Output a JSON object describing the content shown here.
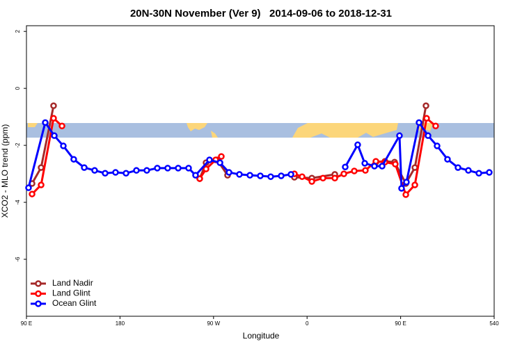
{
  "chart_data": {
    "type": "line",
    "title": "20N-30N November (Ver 9)   2014-09-06 to 2018-12-31",
    "x_label": "Longitude",
    "y_label": "XCO2 - MLO trend (ppm)",
    "xlim": [
      90,
      540
    ],
    "ylim": [
      -8,
      2.2
    ],
    "xticks": [
      {
        "value": 90,
        "label": "90 E"
      },
      180,
      {
        "value": 270,
        "label": "90 W"
      },
      {
        "value": 360,
        "label": "0"
      },
      {
        "value": 450,
        "label": "90 E"
      },
      540
    ],
    "yticks": [
      2,
      0,
      -2,
      -4,
      -6
    ],
    "legend": "bottom-left",
    "series": [
      {
        "name": "Land Nadir",
        "color": "#a52a2a",
        "x": [
          95.4,
          104.1,
          116.1,
          null,
          256.7,
          262.8,
          273.5,
          283.5,
          null,
          347.8,
          364.6,
          386.7,
          null,
          426.2,
          434.9,
          444.2,
          455,
          463.7,
          474.4
        ],
        "values": [
          -3.34,
          -2.78,
          -0.61,
          null,
          -3.17,
          -2.61,
          -2.51,
          -3.05,
          null,
          -3.12,
          -3.15,
          -3.02,
          null,
          -2.59,
          -2.56,
          -2.59,
          -3.34,
          -2.78,
          -0.61
        ]
      },
      {
        "name": "Land Glint",
        "color": "#ff0000",
        "x": [
          95.4,
          104.1,
          116.1,
          124.2,
          null,
          256.7,
          262.8,
          272.1,
          277.5,
          null,
          347.8,
          355.2,
          364.6,
          375.3,
          386.7,
          395.4,
          405.4,
          416.1,
          426.2,
          434.9,
          444.9,
          455,
          463.7,
          475,
          483.7
        ],
        "values": [
          -3.71,
          -3.39,
          -1.05,
          -1.32,
          null,
          -3.17,
          -2.83,
          -2.51,
          -2.39,
          null,
          -3.0,
          -3.1,
          -3.27,
          -3.15,
          -3.15,
          -3.0,
          -2.9,
          -2.88,
          -2.56,
          -2.59,
          -2.66,
          -3.73,
          -3.39,
          -1.05,
          -1.32
        ]
      },
      {
        "name": "Ocean Glint",
        "color": "#0000ff",
        "x": [
          92,
          108.1,
          116.8,
          125.5,
          135.5,
          145.6,
          155.6,
          165.7,
          175.7,
          185.8,
          195.8,
          205.8,
          215.9,
          225.9,
          236,
          246,
          252.7,
          266.1,
          276.2,
          284.9,
          294.9,
          305,
          315,
          325,
          335.1,
          344.5,
          null,
          396.7,
          408.7,
          415.5,
          424.8,
          432.2,
          448.9,
          450.9,
          455.6,
          467.7,
          476.4,
          485.1,
          495.1,
          505.2,
          515.2,
          525.3,
          535.3
        ],
        "values": [
          -3.49,
          -1.2,
          -1.66,
          -2.02,
          -2.49,
          -2.78,
          -2.88,
          -2.98,
          -2.95,
          -2.98,
          -2.88,
          -2.88,
          -2.8,
          -2.8,
          -2.8,
          -2.8,
          -3.05,
          -2.51,
          -2.61,
          -2.95,
          -3.02,
          -3.05,
          -3.07,
          -3.1,
          -3.07,
          -3.02,
          null,
          -2.76,
          -1.98,
          -2.63,
          -2.73,
          -2.73,
          -1.66,
          -3.51,
          -3.29,
          -1.2,
          -1.66,
          -2.02,
          -2.49,
          -2.78,
          -2.88,
          -2.98,
          -2.95
        ]
      }
    ]
  }
}
